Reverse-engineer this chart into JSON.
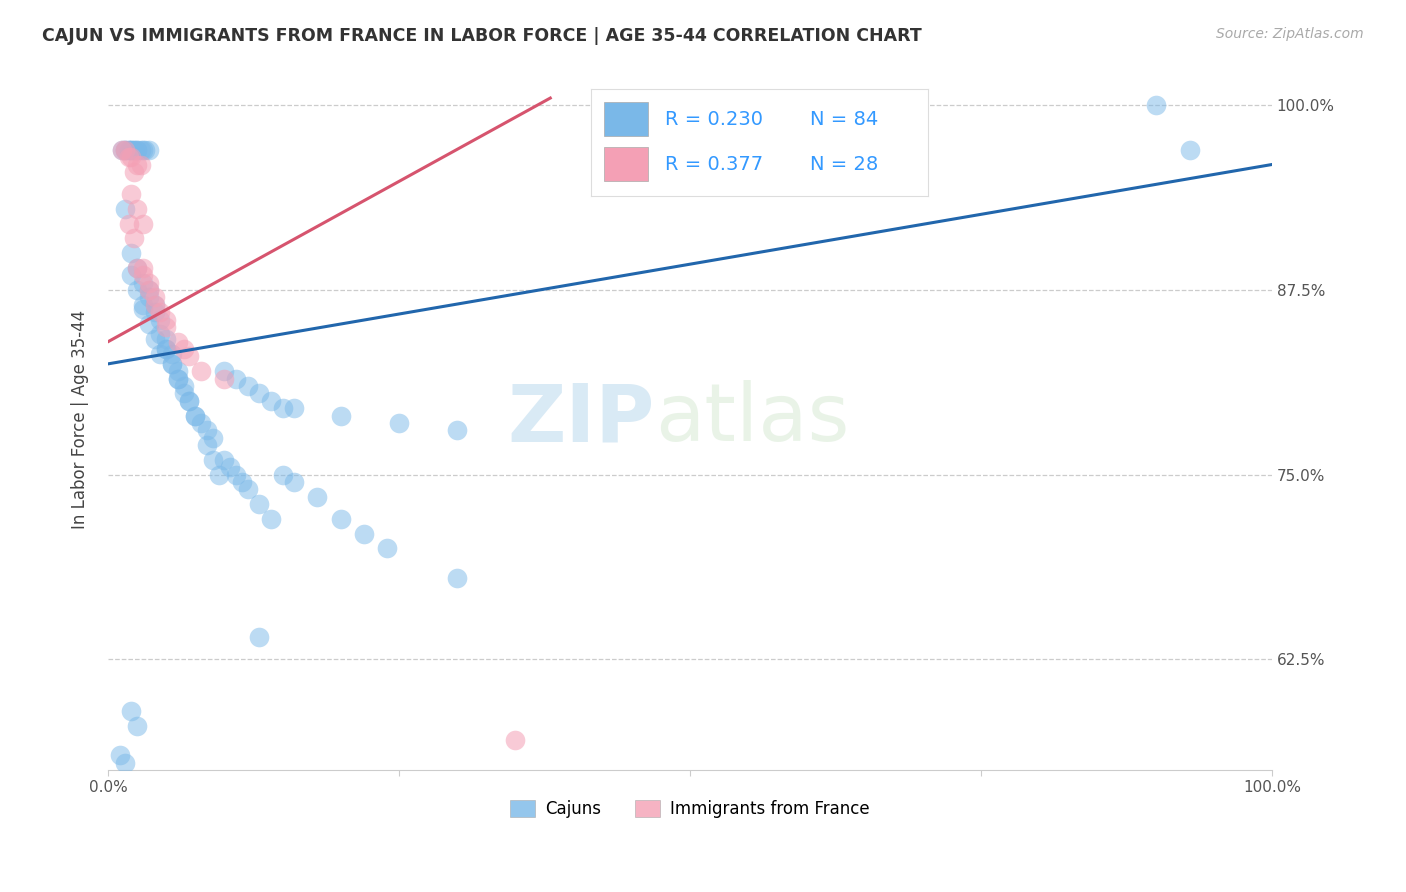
{
  "title": "CAJUN VS IMMIGRANTS FROM FRANCE IN LABOR FORCE | AGE 35-44 CORRELATION CHART",
  "source": "Source: ZipAtlas.com",
  "ylabel": "In Labor Force | Age 35-44",
  "watermark_zip": "ZIP",
  "watermark_atlas": "atlas",
  "legend_r1": "R = 0.230",
  "legend_n1": "N = 84",
  "legend_r2": "R = 0.377",
  "legend_n2": "N = 28",
  "xlim": [
    0.0,
    1.0
  ],
  "ylim": [
    0.55,
    1.025
  ],
  "yticks": [
    0.625,
    0.75,
    0.875,
    1.0
  ],
  "ytick_labels": [
    "62.5%",
    "75.0%",
    "87.5%",
    "100.0%"
  ],
  "blue_color": "#7ab8e8",
  "pink_color": "#f4a0b5",
  "blue_line_color": "#2166ac",
  "pink_line_color": "#d6546e",
  "title_color": "#333333",
  "source_color": "#aaaaaa",
  "legend_text_color": "#3399ff",
  "grid_color": "#cccccc",
  "background_color": "#ffffff",
  "cajun_x": [
    0.015,
    0.018,
    0.02,
    0.022,
    0.025,
    0.012,
    0.015,
    0.018,
    0.02,
    0.022,
    0.025,
    0.028,
    0.03,
    0.032,
    0.035,
    0.015,
    0.02,
    0.025,
    0.03,
    0.035,
    0.04,
    0.02,
    0.025,
    0.03,
    0.035,
    0.04,
    0.045,
    0.03,
    0.035,
    0.04,
    0.045,
    0.05,
    0.055,
    0.045,
    0.05,
    0.055,
    0.06,
    0.05,
    0.055,
    0.06,
    0.065,
    0.06,
    0.065,
    0.07,
    0.075,
    0.07,
    0.075,
    0.08,
    0.085,
    0.09,
    0.085,
    0.09,
    0.095,
    0.1,
    0.105,
    0.11,
    0.115,
    0.12,
    0.13,
    0.14,
    0.1,
    0.11,
    0.12,
    0.13,
    0.14,
    0.15,
    0.16,
    0.2,
    0.25,
    0.3,
    0.15,
    0.16,
    0.18,
    0.2,
    0.22,
    0.24,
    0.3,
    0.13,
    0.02,
    0.025,
    0.9,
    0.93,
    0.01,
    0.015
  ],
  "cajun_y": [
    0.97,
    0.97,
    0.97,
    0.97,
    0.97,
    0.97,
    0.97,
    0.97,
    0.97,
    0.97,
    0.97,
    0.97,
    0.97,
    0.97,
    0.97,
    0.93,
    0.9,
    0.89,
    0.88,
    0.87,
    0.86,
    0.885,
    0.875,
    0.865,
    0.875,
    0.865,
    0.855,
    0.862,
    0.852,
    0.842,
    0.832,
    0.842,
    0.832,
    0.845,
    0.835,
    0.825,
    0.815,
    0.835,
    0.825,
    0.815,
    0.805,
    0.82,
    0.81,
    0.8,
    0.79,
    0.8,
    0.79,
    0.785,
    0.78,
    0.775,
    0.77,
    0.76,
    0.75,
    0.76,
    0.755,
    0.75,
    0.745,
    0.74,
    0.73,
    0.72,
    0.82,
    0.815,
    0.81,
    0.805,
    0.8,
    0.795,
    0.795,
    0.79,
    0.785,
    0.78,
    0.75,
    0.745,
    0.735,
    0.72,
    0.71,
    0.7,
    0.68,
    0.64,
    0.59,
    0.58,
    1.0,
    0.97,
    0.56,
    0.555
  ],
  "france_x": [
    0.015,
    0.02,
    0.025,
    0.012,
    0.018,
    0.022,
    0.028,
    0.02,
    0.025,
    0.03,
    0.018,
    0.022,
    0.025,
    0.03,
    0.035,
    0.04,
    0.05,
    0.03,
    0.035,
    0.04,
    0.045,
    0.05,
    0.06,
    0.065,
    0.07,
    0.08,
    0.1,
    0.35
  ],
  "france_y": [
    0.97,
    0.965,
    0.96,
    0.97,
    0.965,
    0.955,
    0.96,
    0.94,
    0.93,
    0.92,
    0.92,
    0.91,
    0.89,
    0.885,
    0.875,
    0.865,
    0.855,
    0.89,
    0.88,
    0.87,
    0.86,
    0.85,
    0.84,
    0.835,
    0.83,
    0.82,
    0.815,
    0.57
  ],
  "blue_trend_x": [
    0.0,
    1.0
  ],
  "blue_trend_y": [
    0.825,
    0.96
  ],
  "pink_trend_x": [
    0.0,
    0.38
  ],
  "pink_trend_y": [
    0.84,
    1.005
  ]
}
